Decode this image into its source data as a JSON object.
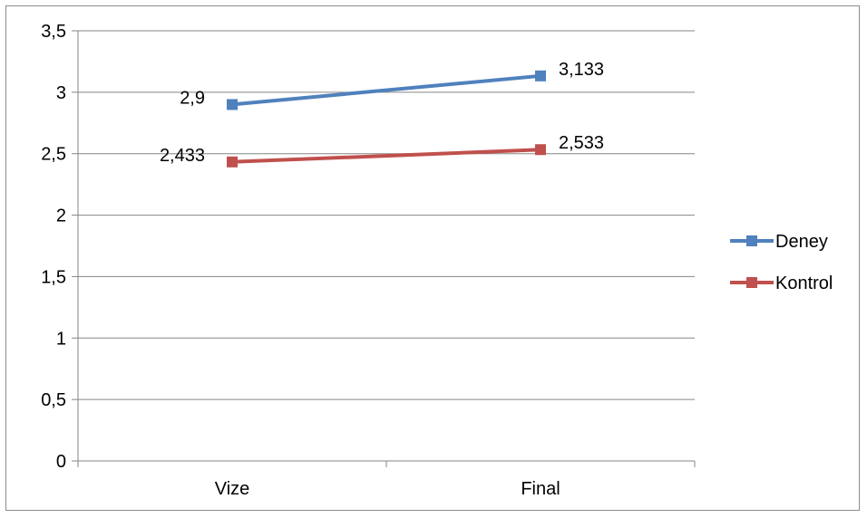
{
  "chart_data": {
    "type": "line",
    "title": "",
    "xlabel": "",
    "ylabel": "",
    "categories": [
      "Vize",
      "Final"
    ],
    "ylim": [
      0,
      3.5
    ],
    "yticks": [
      "0",
      "0,5",
      "1",
      "1,5",
      "2",
      "2,5",
      "3",
      "3,5"
    ],
    "grid": true,
    "legend_position": "right",
    "series": [
      {
        "name": "Deney",
        "values": [
          2.9,
          3.133
        ],
        "labels": [
          "2,9",
          "3,133"
        ],
        "color": "#4f81bd"
      },
      {
        "name": "Kontrol",
        "values": [
          2.433,
          2.533
        ],
        "labels": [
          "2,433",
          "2,533"
        ],
        "color": "#c0504d"
      }
    ]
  }
}
